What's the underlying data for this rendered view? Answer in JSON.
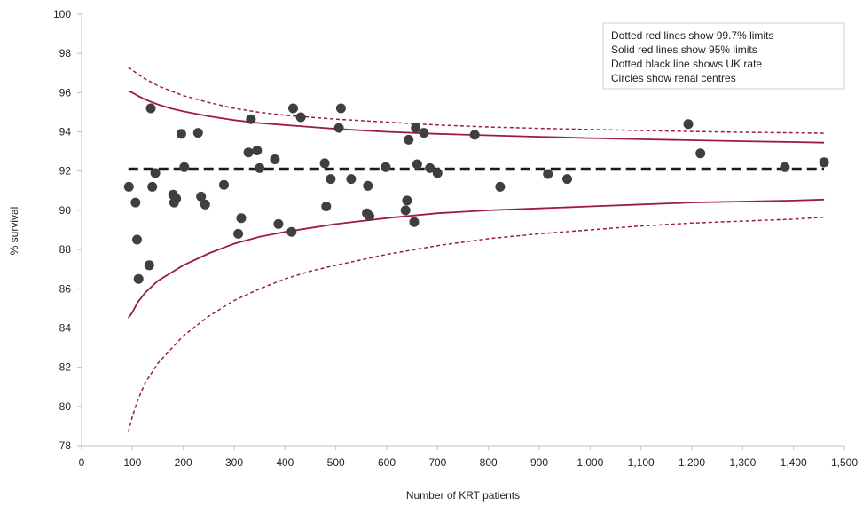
{
  "chart_data": {
    "type": "scatter",
    "title": "",
    "xlabel": "Number of KRT patients",
    "ylabel": "% survival",
    "xlim": [
      0,
      1500
    ],
    "ylim": [
      78,
      100
    ],
    "x_ticks": [
      0,
      100,
      200,
      300,
      400,
      500,
      600,
      700,
      800,
      900,
      1000,
      1100,
      1200,
      1300,
      1400,
      1500
    ],
    "x_tick_labels": [
      "0",
      "100",
      "200",
      "300",
      "400",
      "500",
      "600",
      "700",
      "800",
      "900",
      "1,000",
      "1,100",
      "1,200",
      "1,300",
      "1,400",
      "1,500"
    ],
    "y_ticks": [
      78,
      80,
      82,
      84,
      86,
      88,
      90,
      92,
      94,
      96,
      98,
      100
    ],
    "y_tick_labels": [
      "78",
      "80",
      "82",
      "84",
      "86",
      "88",
      "90",
      "92",
      "94",
      "96",
      "98",
      "100"
    ],
    "grid": false,
    "legend": {
      "placement": "top-right",
      "entries": [
        "Dotted red lines show 99.7% limits",
        "Solid red lines show 95% limits",
        "Dotted black line shows UK rate",
        "Circles show renal centres"
      ]
    },
    "uk_rate": 92.1,
    "limit_curves": {
      "x": [
        92,
        100,
        110,
        125,
        150,
        175,
        200,
        250,
        300,
        350,
        400,
        450,
        500,
        600,
        700,
        800,
        900,
        1000,
        1100,
        1200,
        1300,
        1400,
        1460
      ],
      "upper_997": [
        97.3,
        97.15,
        96.95,
        96.7,
        96.35,
        96.1,
        95.85,
        95.5,
        95.2,
        95.0,
        94.85,
        94.75,
        94.65,
        94.5,
        94.35,
        94.25,
        94.18,
        94.12,
        94.07,
        94.02,
        93.98,
        93.95,
        93.93
      ],
      "upper_95": [
        96.1,
        96.0,
        95.85,
        95.65,
        95.4,
        95.2,
        95.05,
        94.8,
        94.6,
        94.45,
        94.35,
        94.25,
        94.15,
        94.0,
        93.9,
        93.82,
        93.75,
        93.68,
        93.62,
        93.57,
        93.52,
        93.48,
        93.45
      ],
      "lower_95": [
        84.5,
        84.8,
        85.3,
        85.8,
        86.4,
        86.8,
        87.2,
        87.8,
        88.3,
        88.65,
        88.9,
        89.1,
        89.3,
        89.6,
        89.85,
        90.0,
        90.1,
        90.2,
        90.3,
        90.4,
        90.45,
        90.5,
        90.55
      ],
      "lower_997": [
        78.7,
        79.5,
        80.3,
        81.2,
        82.2,
        82.9,
        83.6,
        84.6,
        85.4,
        86.0,
        86.5,
        86.9,
        87.2,
        87.75,
        88.2,
        88.55,
        88.8,
        89.0,
        89.2,
        89.35,
        89.45,
        89.55,
        89.65
      ]
    },
    "series": [
      {
        "name": "Circles show renal centres",
        "color": "#3f3f3f",
        "points": [
          [
            93,
            91.2
          ],
          [
            106,
            90.4
          ],
          [
            109,
            88.5
          ],
          [
            112,
            86.5
          ],
          [
            133,
            87.2
          ],
          [
            136,
            95.2
          ],
          [
            139,
            91.2
          ],
          [
            145,
            91.9
          ],
          [
            180,
            90.8
          ],
          [
            182,
            90.4
          ],
          [
            186,
            90.6
          ],
          [
            196,
            93.9
          ],
          [
            202,
            92.2
          ],
          [
            229,
            93.95
          ],
          [
            235,
            90.7
          ],
          [
            243,
            90.3
          ],
          [
            280,
            91.3
          ],
          [
            308,
            88.8
          ],
          [
            314,
            89.6
          ],
          [
            328,
            92.95
          ],
          [
            333,
            94.65
          ],
          [
            345,
            93.05
          ],
          [
            350,
            92.15
          ],
          [
            380,
            92.6
          ],
          [
            387,
            89.3
          ],
          [
            413,
            88.9
          ],
          [
            416,
            95.2
          ],
          [
            431,
            94.75
          ],
          [
            478,
            92.4
          ],
          [
            481,
            90.2
          ],
          [
            490,
            91.6
          ],
          [
            506,
            94.2
          ],
          [
            510,
            95.2
          ],
          [
            530,
            91.6
          ],
          [
            561,
            89.85
          ],
          [
            563,
            91.25
          ],
          [
            566,
            89.7
          ],
          [
            598,
            92.2
          ],
          [
            637,
            90.0
          ],
          [
            640,
            90.5
          ],
          [
            643,
            93.6
          ],
          [
            654,
            89.4
          ],
          [
            657,
            94.2
          ],
          [
            660,
            92.35
          ],
          [
            673,
            93.95
          ],
          [
            685,
            92.15
          ],
          [
            700,
            91.9
          ],
          [
            773,
            93.85
          ],
          [
            823,
            91.2
          ],
          [
            917,
            91.85
          ],
          [
            955,
            91.6
          ],
          [
            1193,
            94.4
          ],
          [
            1217,
            92.9
          ],
          [
            1383,
            92.2
          ],
          [
            1460,
            92.45
          ]
        ]
      }
    ],
    "colors": {
      "limit_lines": "#9b1b4a",
      "uk_rate_line": "#1a1a1a",
      "points": "#3f3f3f",
      "axis": "#bfbfbf",
      "legend_border": "#d0d0d0"
    }
  }
}
